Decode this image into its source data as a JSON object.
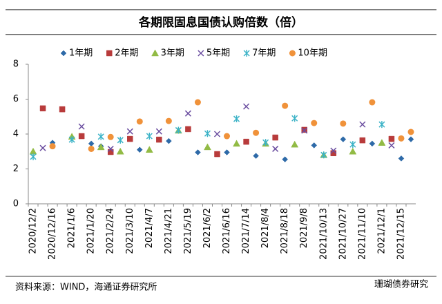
{
  "chart_data": {
    "type": "scatter",
    "title": "各期限固息国债认购倍数（倍）",
    "source": "资料来源：WIND，海通证券研究所",
    "watermark": "珊瑚债券研究",
    "categories": [
      "2020/12/2",
      null,
      "2020/12/16",
      null,
      "2021/1/6",
      null,
      "2021/1/20",
      null,
      "2021/2/24",
      null,
      "2021/3/10",
      null,
      "2021/4/7",
      null,
      "2021/4/21",
      null,
      "2021/5/19",
      null,
      "2021/6/2",
      null,
      "2021/6/16",
      null,
      "2021/7/14",
      null,
      "2021/8/4",
      null,
      "2021/8/18",
      null,
      "2021/9/8",
      null,
      "2021/10/13",
      null,
      "2021/10/27",
      null,
      "2021/11/10",
      null,
      "2021/12/1",
      null,
      "2021/12/15",
      null
    ],
    "ylim": [
      0,
      8
    ],
    "yticks": [
      0,
      2,
      4,
      6,
      8
    ],
    "legend": "top",
    "series": [
      {
        "name": "1年期",
        "color": "#2e6aa8",
        "marker": "diamond",
        "values": [
          null,
          null,
          3.5,
          null,
          null,
          null,
          3.45,
          3.3,
          null,
          null,
          null,
          3.1,
          null,
          null,
          3.6,
          null,
          null,
          2.95,
          null,
          null,
          2.95,
          null,
          null,
          2.75,
          null,
          null,
          2.55,
          null,
          null,
          3.35,
          null,
          null,
          3.7,
          null,
          null,
          3.45,
          null,
          null,
          2.6,
          3.7
        ]
      },
      {
        "name": "2年期",
        "color": "#b83b3b",
        "marker": "square",
        "values": [
          null,
          5.47,
          null,
          5.42,
          null,
          3.88,
          null,
          null,
          2.97,
          null,
          3.72,
          null,
          null,
          3.68,
          null,
          null,
          4.28,
          null,
          null,
          2.85,
          null,
          null,
          3.56,
          null,
          null,
          3.8,
          null,
          null,
          4.24,
          null,
          null,
          2.9,
          null,
          null,
          3.64,
          null,
          null,
          3.72,
          null,
          null
        ]
      },
      {
        "name": "3年期",
        "color": "#92bb45",
        "marker": "triangle",
        "values": [
          3.0,
          null,
          null,
          null,
          3.85,
          null,
          null,
          3.25,
          null,
          3.0,
          null,
          null,
          3.1,
          null,
          null,
          4.2,
          null,
          null,
          3.25,
          null,
          null,
          3.45,
          null,
          null,
          3.45,
          null,
          null,
          3.4,
          null,
          null,
          2.8,
          null,
          null,
          3.0,
          null,
          null,
          3.5,
          null,
          null,
          null
        ]
      },
      {
        "name": "5年期",
        "color": "#6b4ea0",
        "marker": "cross",
        "values": [
          null,
          3.2,
          null,
          null,
          null,
          4.43,
          null,
          null,
          3.15,
          null,
          4.15,
          null,
          null,
          4.15,
          null,
          null,
          5.18,
          null,
          null,
          4.0,
          null,
          null,
          5.58,
          null,
          null,
          3.15,
          null,
          null,
          4.2,
          null,
          null,
          3.05,
          null,
          null,
          4.55,
          null,
          null,
          3.35,
          null,
          null
        ]
      },
      {
        "name": "7年期",
        "color": "#3cb3c7",
        "marker": "star",
        "values": [
          2.7,
          null,
          null,
          null,
          3.68,
          null,
          null,
          3.85,
          null,
          3.65,
          null,
          null,
          3.88,
          null,
          null,
          4.22,
          null,
          null,
          4.03,
          null,
          null,
          4.87,
          null,
          null,
          3.52,
          null,
          null,
          4.9,
          null,
          null,
          2.8,
          null,
          null,
          3.4,
          null,
          null,
          4.55,
          null,
          null,
          null
        ]
      },
      {
        "name": "10年期",
        "color": "#f0923a",
        "marker": "circle",
        "values": [
          null,
          null,
          3.3,
          null,
          null,
          null,
          3.15,
          null,
          3.83,
          null,
          null,
          4.72,
          null,
          null,
          4.75,
          null,
          null,
          5.82,
          null,
          null,
          3.88,
          null,
          null,
          4.07,
          null,
          null,
          5.62,
          null,
          null,
          4.63,
          null,
          null,
          4.6,
          null,
          null,
          5.82,
          null,
          null,
          3.75,
          4.12
        ]
      }
    ]
  }
}
